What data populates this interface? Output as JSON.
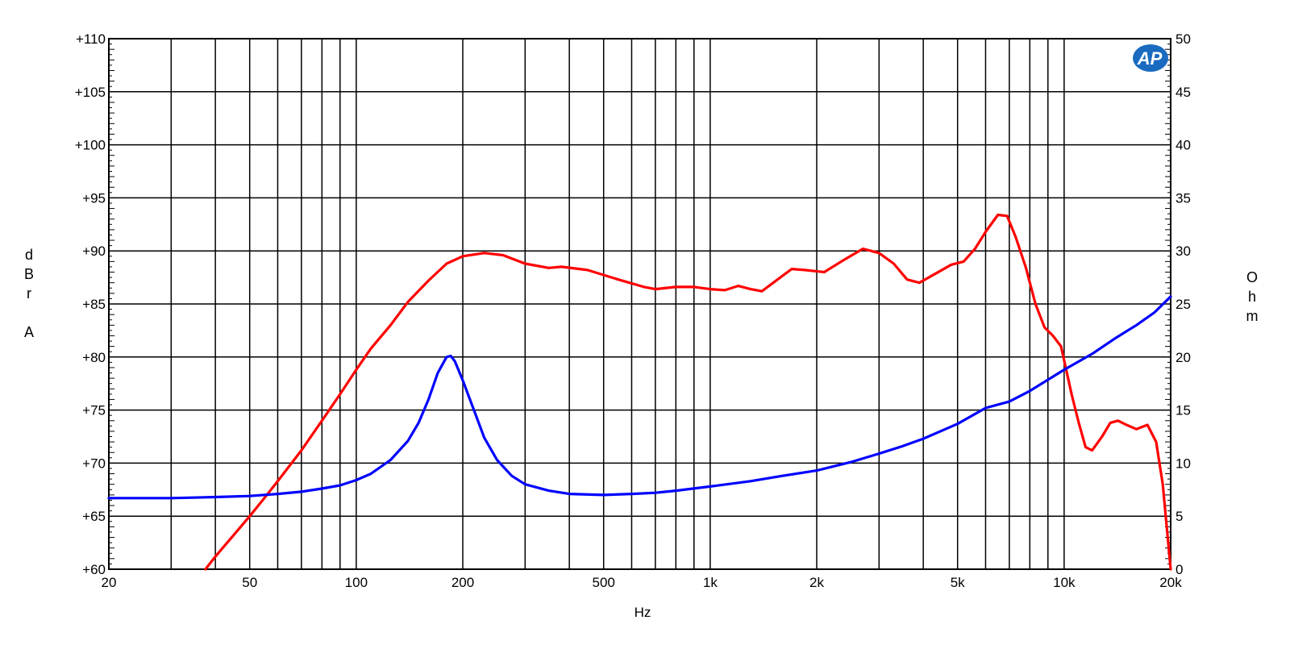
{
  "chart_data": {
    "type": "line",
    "title": "",
    "xlabel": "Hz",
    "ylabel_left": "dBrA",
    "ylabel_right": "Ohm",
    "x_scale": "log",
    "xlim": [
      20,
      20000
    ],
    "ylim_left": [
      60,
      110
    ],
    "ylim_right": [
      0,
      50
    ],
    "grid": true,
    "legend": "none",
    "x_tick_labels": [
      {
        "value": 20,
        "label": "20"
      },
      {
        "value": 50,
        "label": "50"
      },
      {
        "value": 100,
        "label": "100"
      },
      {
        "value": 200,
        "label": "200"
      },
      {
        "value": 500,
        "label": "500"
      },
      {
        "value": 1000,
        "label": "1k"
      },
      {
        "value": 2000,
        "label": "2k"
      },
      {
        "value": 5000,
        "label": "5k"
      },
      {
        "value": 10000,
        "label": "10k"
      },
      {
        "value": 20000,
        "label": "20k"
      }
    ],
    "y_left_ticks": [
      {
        "value": 60,
        "label": "+60"
      },
      {
        "value": 65,
        "label": "+65"
      },
      {
        "value": 70,
        "label": "+70"
      },
      {
        "value": 75,
        "label": "+75"
      },
      {
        "value": 80,
        "label": "+80"
      },
      {
        "value": 85,
        "label": "+85"
      },
      {
        "value": 90,
        "label": "+90"
      },
      {
        "value": 95,
        "label": "+95"
      },
      {
        "value": 100,
        "label": "+100"
      },
      {
        "value": 105,
        "label": "+105"
      },
      {
        "value": 110,
        "label": "+110"
      }
    ],
    "y_right_ticks": [
      {
        "value": 0,
        "label": "0"
      },
      {
        "value": 5,
        "label": "5"
      },
      {
        "value": 10,
        "label": "10"
      },
      {
        "value": 15,
        "label": "15"
      },
      {
        "value": 20,
        "label": "20"
      },
      {
        "value": 25,
        "label": "25"
      },
      {
        "value": 30,
        "label": "30"
      },
      {
        "value": 35,
        "label": "35"
      },
      {
        "value": 40,
        "label": "40"
      },
      {
        "value": 45,
        "label": "45"
      },
      {
        "value": 50,
        "label": "50"
      }
    ],
    "series": [
      {
        "axis": "left",
        "color": "#ff0000",
        "points": [
          [
            37.5,
            60
          ],
          [
            40,
            61.2
          ],
          [
            45,
            63.2
          ],
          [
            50,
            65
          ],
          [
            55,
            66.7
          ],
          [
            60,
            68.3
          ],
          [
            70,
            71.2
          ],
          [
            80,
            74
          ],
          [
            90,
            76.5
          ],
          [
            100,
            78.8
          ],
          [
            110,
            80.8
          ],
          [
            125,
            83
          ],
          [
            140,
            85.2
          ],
          [
            160,
            87.2
          ],
          [
            180,
            88.8
          ],
          [
            200,
            89.5
          ],
          [
            230,
            89.8
          ],
          [
            260,
            89.6
          ],
          [
            300,
            88.8
          ],
          [
            350,
            88.4
          ],
          [
            380,
            88.5
          ],
          [
            450,
            88.2
          ],
          [
            550,
            87.3
          ],
          [
            650,
            86.6
          ],
          [
            700,
            86.4
          ],
          [
            800,
            86.6
          ],
          [
            900,
            86.6
          ],
          [
            1000,
            86.4
          ],
          [
            1100,
            86.3
          ],
          [
            1200,
            86.7
          ],
          [
            1300,
            86.4
          ],
          [
            1400,
            86.2
          ],
          [
            1550,
            87.3
          ],
          [
            1700,
            88.3
          ],
          [
            1850,
            88.2
          ],
          [
            2100,
            88
          ],
          [
            2400,
            89.2
          ],
          [
            2700,
            90.2
          ],
          [
            3000,
            89.8
          ],
          [
            3300,
            88.8
          ],
          [
            3600,
            87.3
          ],
          [
            3900,
            87
          ],
          [
            4300,
            87.8
          ],
          [
            4800,
            88.7
          ],
          [
            5200,
            89
          ],
          [
            5600,
            90.2
          ],
          [
            6000,
            91.8
          ],
          [
            6500,
            93.4
          ],
          [
            6900,
            93.3
          ],
          [
            7300,
            91.3
          ],
          [
            7800,
            88.4
          ],
          [
            8300,
            85
          ],
          [
            8800,
            82.8
          ],
          [
            9300,
            82
          ],
          [
            9800,
            81
          ],
          [
            10500,
            76.5
          ],
          [
            11000,
            73.8
          ],
          [
            11500,
            71.5
          ],
          [
            12000,
            71.2
          ],
          [
            12800,
            72.5
          ],
          [
            13500,
            73.8
          ],
          [
            14200,
            74
          ],
          [
            15000,
            73.6
          ],
          [
            16000,
            73.2
          ],
          [
            17200,
            73.6
          ],
          [
            18200,
            72
          ],
          [
            19000,
            68
          ],
          [
            20000,
            60
          ]
        ]
      },
      {
        "axis": "right",
        "color": "#0000ff",
        "points": [
          [
            20,
            6.7
          ],
          [
            30,
            6.7
          ],
          [
            40,
            6.8
          ],
          [
            50,
            6.9
          ],
          [
            60,
            7.1
          ],
          [
            70,
            7.3
          ],
          [
            80,
            7.6
          ],
          [
            90,
            7.9
          ],
          [
            100,
            8.4
          ],
          [
            110,
            9
          ],
          [
            125,
            10.3
          ],
          [
            140,
            12.1
          ],
          [
            150,
            13.8
          ],
          [
            160,
            16
          ],
          [
            170,
            18.5
          ],
          [
            180,
            20
          ],
          [
            185,
            20.1
          ],
          [
            190,
            19.6
          ],
          [
            200,
            17.8
          ],
          [
            215,
            15
          ],
          [
            230,
            12.4
          ],
          [
            250,
            10.3
          ],
          [
            275,
            8.8
          ],
          [
            300,
            8
          ],
          [
            350,
            7.4
          ],
          [
            400,
            7.1
          ],
          [
            500,
            7
          ],
          [
            600,
            7.1
          ],
          [
            700,
            7.2
          ],
          [
            800,
            7.4
          ],
          [
            1000,
            7.8
          ],
          [
            1300,
            8.3
          ],
          [
            1600,
            8.8
          ],
          [
            2000,
            9.3
          ],
          [
            2500,
            10.1
          ],
          [
            3000,
            10.9
          ],
          [
            3500,
            11.6
          ],
          [
            4000,
            12.3
          ],
          [
            5000,
            13.7
          ],
          [
            6000,
            15.2
          ],
          [
            7000,
            15.8
          ],
          [
            8000,
            16.8
          ],
          [
            10000,
            18.8
          ],
          [
            12000,
            20.3
          ],
          [
            14000,
            21.8
          ],
          [
            16000,
            23
          ],
          [
            18000,
            24.2
          ],
          [
            20000,
            25.7
          ]
        ]
      }
    ]
  },
  "logo": {
    "text": "AP",
    "color": "#1a6bc0"
  }
}
